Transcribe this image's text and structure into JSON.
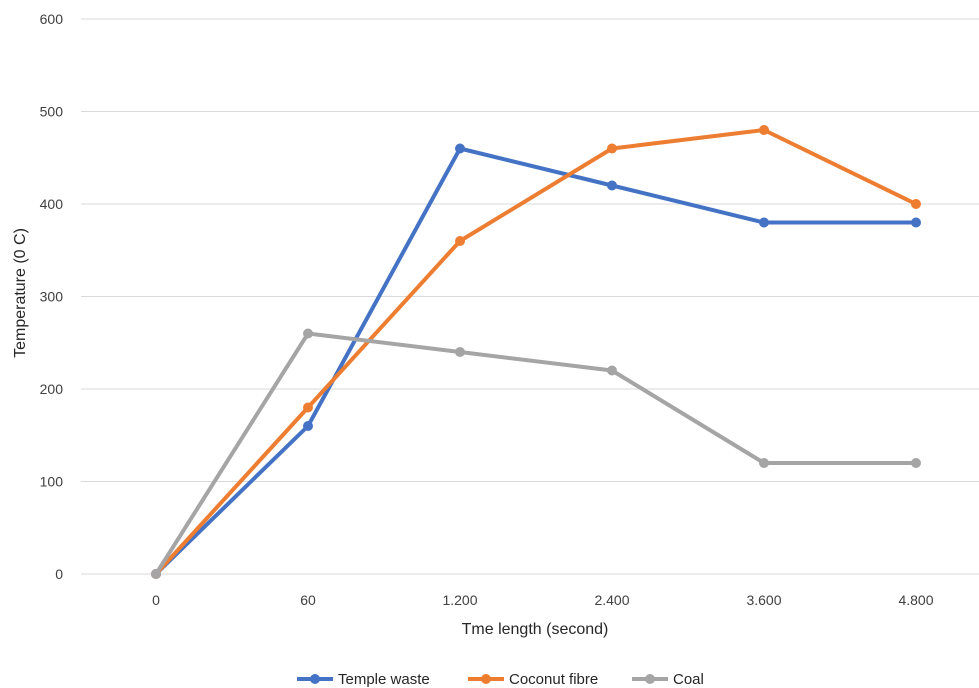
{
  "chart_data": {
    "type": "line",
    "categories": [
      "0",
      "60",
      "1.200",
      "2.400",
      "3.600",
      "4.800"
    ],
    "xlabel": "Tme length (second)",
    "ylabel": "Temperature (0 C)",
    "ylim": [
      0,
      600
    ],
    "yticks": [
      "0",
      "100",
      "200",
      "300",
      "400",
      "500",
      "600"
    ],
    "grid": "horizontal",
    "legend_position": "bottom",
    "series": [
      {
        "name": "Temple waste",
        "color": "#4472C4",
        "values": [
          0,
          160,
          460,
          420,
          380,
          380
        ]
      },
      {
        "name": "Coconut fibre",
        "color": "#ED7D31",
        "values": [
          0,
          180,
          360,
          460,
          480,
          400
        ]
      },
      {
        "name": "Coal",
        "color": "#A5A5A5",
        "values": [
          0,
          260,
          240,
          220,
          120,
          120
        ]
      }
    ]
  }
}
